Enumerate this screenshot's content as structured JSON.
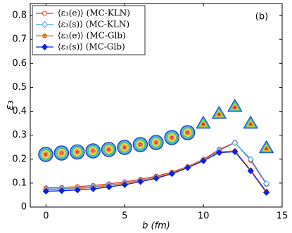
{
  "chart_data": {
    "type": "line",
    "x_label": "b (fm)",
    "y_label": "ε₃",
    "annotation": "(b)",
    "x": [
      0,
      1,
      2,
      3,
      4,
      5,
      6,
      7,
      8,
      9,
      10,
      11,
      12,
      13,
      14
    ],
    "series": [
      {
        "name": "⟨ε₃(e)⟩ (MC-KLN)",
        "color": "#e03a2f",
        "marker": "circle-open",
        "values": [
          0.08,
          0.082,
          0.085,
          0.09,
          0.097,
          0.105,
          0.116,
          0.129,
          0.146,
          0.169,
          0.199,
          0.24,
          0.27,
          0.195,
          0.095
        ]
      },
      {
        "name": "⟨ε₃(s)⟩ (MC-KLN)",
        "color": "#3fa0e0",
        "marker": "diamond-open",
        "values": [
          0.075,
          0.077,
          0.08,
          0.085,
          0.092,
          0.1,
          0.111,
          0.124,
          0.142,
          0.166,
          0.197,
          0.235,
          0.268,
          0.2,
          0.098
        ]
      },
      {
        "name": "⟨ε₃(e)⟩ (MC-Glb)",
        "color": "#d9822b",
        "marker": "circle-filled",
        "values": [
          0.072,
          0.074,
          0.077,
          0.082,
          0.089,
          0.098,
          0.11,
          0.124,
          0.142,
          0.167,
          0.196,
          0.23,
          0.235,
          0.155,
          0.066
        ]
      },
      {
        "name": "⟨ε₃(s)⟩ (MC-Glb)",
        "color": "#1020e0",
        "marker": "diamond-filled",
        "values": [
          0.066,
          0.068,
          0.071,
          0.076,
          0.084,
          0.093,
          0.106,
          0.12,
          0.139,
          0.164,
          0.193,
          0.227,
          0.231,
          0.151,
          0.061
        ]
      }
    ],
    "xlim": [
      -1,
      15
    ],
    "xticks": [
      0,
      5,
      10,
      15
    ],
    "ylim": [
      0,
      0.85
    ],
    "yticks": [
      0,
      0.1,
      0.2,
      0.3,
      0.4,
      0.5,
      0.6,
      0.7,
      0.8
    ],
    "legend": "upper-left"
  }
}
